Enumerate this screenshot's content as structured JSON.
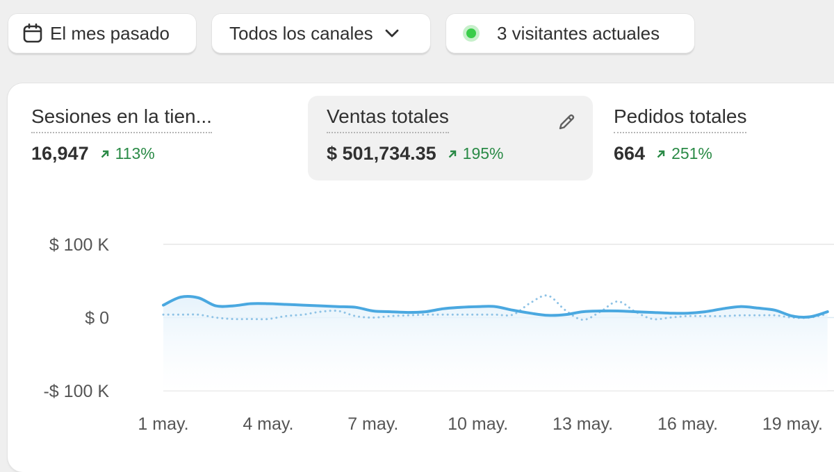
{
  "filters": {
    "date_range": "El mes pasado",
    "channels": "Todos los canales",
    "live_visitors": "3 visitantes actuales"
  },
  "metrics": [
    {
      "label": "Sesiones en la tien...",
      "value": "16,947",
      "change": "113%"
    },
    {
      "label": "Ventas totales",
      "value": "$ 501,734.35",
      "change": "195%",
      "selected": true
    },
    {
      "label": "Pedidos totales",
      "value": "664",
      "change": "251%"
    }
  ],
  "icons": {
    "date": "calendar-icon",
    "channels": "chevron-down-icon",
    "live": "live-dot-icon",
    "edit": "pencil-icon",
    "trend": "arrow-up-right-icon"
  },
  "colors": {
    "primary_series": "#4aa8e0",
    "comparison_series": "#8fc3e6",
    "positive_change": "#2a8a46",
    "live_dot": "#3acd4a"
  },
  "chart_data": {
    "type": "line",
    "ylim": [
      -100000,
      100000
    ],
    "y_ticks": [
      100000,
      0,
      -100000
    ],
    "y_tick_labels": [
      "$ 100 K",
      "$ 0",
      "-$ 100 K"
    ],
    "x_tick_labels": [
      "1 may.",
      "4 may.",
      "7 may.",
      "10 may.",
      "13 may.",
      "16 may.",
      "19 may."
    ],
    "x_tick_days": [
      1,
      4,
      7,
      10,
      13,
      16,
      19
    ],
    "x": [
      1,
      1.5,
      2,
      2.5,
      3,
      3.5,
      4,
      4.5,
      5,
      5.5,
      6,
      6.5,
      7,
      7.5,
      8,
      8.5,
      9,
      9.5,
      10,
      10.5,
      11,
      11.5,
      12,
      12.5,
      13,
      13.5,
      14,
      14.5,
      15,
      15.5,
      16,
      16.5,
      17,
      17.5,
      18,
      18.5,
      19,
      19.5,
      20
    ],
    "series": [
      {
        "style": "solid",
        "values": [
          17000,
          28000,
          27000,
          16000,
          16000,
          19000,
          19000,
          18000,
          17000,
          16000,
          15000,
          14000,
          9000,
          8000,
          7000,
          8000,
          12000,
          14000,
          15000,
          15000,
          10000,
          6000,
          3000,
          4000,
          8000,
          9000,
          9000,
          8000,
          7000,
          6000,
          6000,
          8000,
          12000,
          15000,
          13000,
          10000,
          2000,
          1000,
          8000
        ]
      },
      {
        "style": "dotted",
        "values": [
          4000,
          4000,
          4000,
          0,
          -2000,
          -2000,
          -2000,
          2000,
          4000,
          8000,
          9000,
          2000,
          0,
          2000,
          3000,
          4000,
          4000,
          4000,
          4000,
          4000,
          4000,
          20000,
          30000,
          10000,
          -3000,
          8000,
          22000,
          8000,
          -2000,
          0,
          2000,
          2000,
          2000,
          3000,
          3000,
          3000,
          0,
          0,
          5000
        ]
      }
    ]
  }
}
